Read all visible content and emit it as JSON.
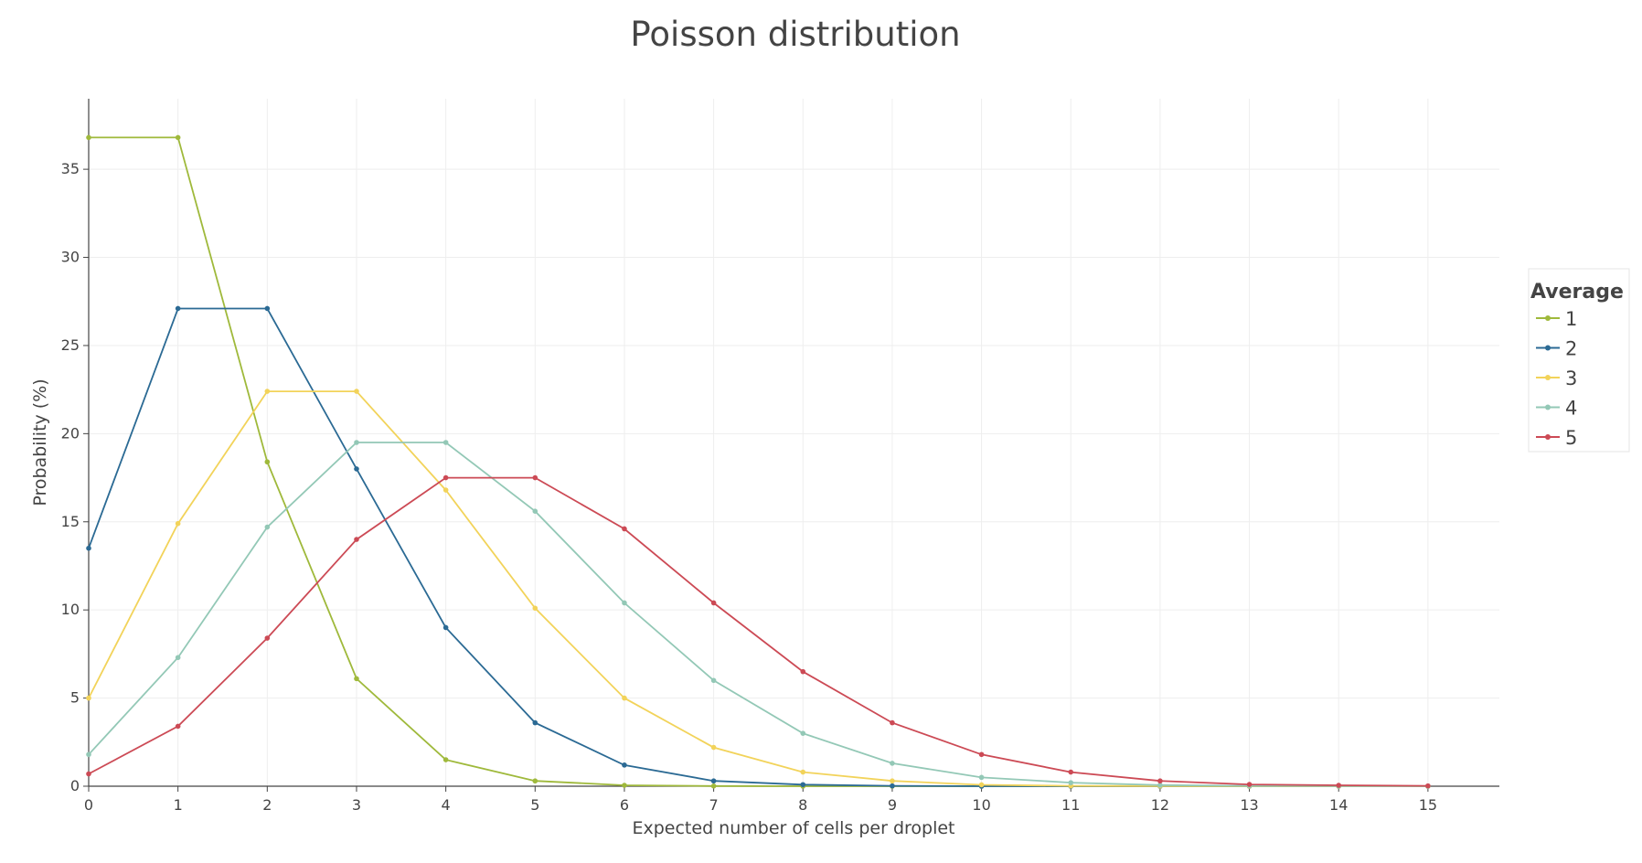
{
  "chart_data": {
    "type": "line",
    "title": "Poisson distribution",
    "xlabel": "Expected number of cells per droplet",
    "ylabel": "Probability (%)",
    "x": [
      0,
      1,
      2,
      3,
      4,
      5,
      6,
      7,
      8,
      9,
      10,
      11,
      12,
      13,
      14,
      15
    ],
    "xlim": [
      0,
      15.8
    ],
    "ylim": [
      0,
      39
    ],
    "xticks": [
      "0",
      "1",
      "2",
      "3",
      "4",
      "5",
      "6",
      "7",
      "8",
      "9",
      "10",
      "11",
      "12",
      "13",
      "14",
      "15"
    ],
    "yticks": [
      "0",
      "5",
      "10",
      "15",
      "20",
      "25",
      "30",
      "35"
    ],
    "grid": true,
    "legend": {
      "title": "Average",
      "position": "right"
    },
    "series": [
      {
        "name": "1",
        "color": "#9fb93b",
        "values": [
          36.8,
          36.8,
          18.4,
          6.1,
          1.5,
          0.3,
          0.05,
          0.01,
          0,
          0,
          0,
          0,
          0,
          0,
          0,
          0
        ]
      },
      {
        "name": "2",
        "color": "#2b6a94",
        "values": [
          13.5,
          27.1,
          27.1,
          18.0,
          9.0,
          3.6,
          1.2,
          0.3,
          0.09,
          0.02,
          0,
          0,
          0,
          0,
          0,
          0
        ]
      },
      {
        "name": "3",
        "color": "#f2d35a",
        "values": [
          5.0,
          14.9,
          22.4,
          22.4,
          16.8,
          10.1,
          5.0,
          2.2,
          0.8,
          0.3,
          0.08,
          0.02,
          0.01,
          0,
          0,
          0
        ]
      },
      {
        "name": "4",
        "color": "#93c8b6",
        "values": [
          1.8,
          7.3,
          14.7,
          19.5,
          19.5,
          15.6,
          10.4,
          6.0,
          3.0,
          1.3,
          0.5,
          0.2,
          0.06,
          0.02,
          0.01,
          0
        ]
      },
      {
        "name": "5",
        "color": "#cc4a55",
        "values": [
          0.7,
          3.4,
          8.4,
          14.0,
          17.5,
          17.5,
          14.6,
          10.4,
          6.5,
          3.6,
          1.8,
          0.8,
          0.3,
          0.1,
          0.05,
          0.02
        ]
      }
    ]
  }
}
